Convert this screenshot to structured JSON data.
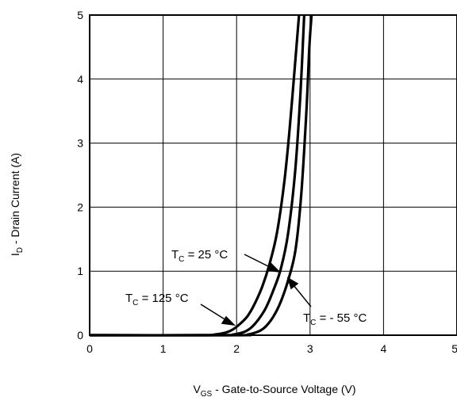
{
  "chart_data": {
    "type": "line",
    "xlabel": "V_GS - Gate-to-Source Voltage (V)",
    "xlabel_parts": {
      "sym": "V",
      "sub": "GS",
      "rest": " - Gate-to-Source Voltage (V)"
    },
    "ylabel": "I_D - Drain Current (A)",
    "ylabel_parts": {
      "sym": "I",
      "sub": "D",
      "rest": " - Drain Current (A)"
    },
    "xlim": [
      0,
      5
    ],
    "ylim": [
      0,
      5
    ],
    "x_ticks": [
      "0",
      "1",
      "2",
      "3",
      "4",
      "5"
    ],
    "y_ticks": [
      "0",
      "1",
      "2",
      "3",
      "4",
      "5"
    ],
    "grid": true,
    "series": [
      {
        "name": "T_C = 125 °C",
        "points": [
          [
            0,
            0
          ],
          [
            1.5,
            0
          ],
          [
            1.7,
            0.01
          ],
          [
            1.85,
            0.04
          ],
          [
            1.95,
            0.09
          ],
          [
            2.05,
            0.18
          ],
          [
            2.15,
            0.3
          ],
          [
            2.25,
            0.5
          ],
          [
            2.35,
            0.76
          ],
          [
            2.45,
            1.12
          ],
          [
            2.55,
            1.6
          ],
          [
            2.65,
            2.4
          ],
          [
            2.72,
            3.2
          ],
          [
            2.8,
            4.3
          ],
          [
            2.85,
            5.0
          ]
        ]
      },
      {
        "name": "T_C = 25 °C",
        "points": [
          [
            0,
            0
          ],
          [
            1.8,
            0
          ],
          [
            1.95,
            0.01
          ],
          [
            2.1,
            0.05
          ],
          [
            2.2,
            0.12
          ],
          [
            2.3,
            0.25
          ],
          [
            2.4,
            0.43
          ],
          [
            2.5,
            0.7
          ],
          [
            2.6,
            1.03
          ],
          [
            2.7,
            1.58
          ],
          [
            2.8,
            2.6
          ],
          [
            2.87,
            3.8
          ],
          [
            2.92,
            5.0
          ]
        ]
      },
      {
        "name": "T_C = - 55 °C",
        "points": [
          [
            0,
            0
          ],
          [
            2.0,
            0
          ],
          [
            2.15,
            0.01
          ],
          [
            2.3,
            0.06
          ],
          [
            2.4,
            0.14
          ],
          [
            2.5,
            0.29
          ],
          [
            2.6,
            0.52
          ],
          [
            2.7,
            0.85
          ],
          [
            2.8,
            1.32
          ],
          [
            2.88,
            2.2
          ],
          [
            2.95,
            3.5
          ],
          [
            2.99,
            4.5
          ],
          [
            3.02,
            5.0
          ]
        ]
      }
    ],
    "annotations": [
      {
        "sym": "T",
        "sub": "C",
        "rest": " = 25 °C"
      },
      {
        "sym": "T",
        "sub": "C",
        "rest": " = 125 °C"
      },
      {
        "sym": "T",
        "sub": "C",
        "rest": " = - 55 °C"
      }
    ]
  }
}
